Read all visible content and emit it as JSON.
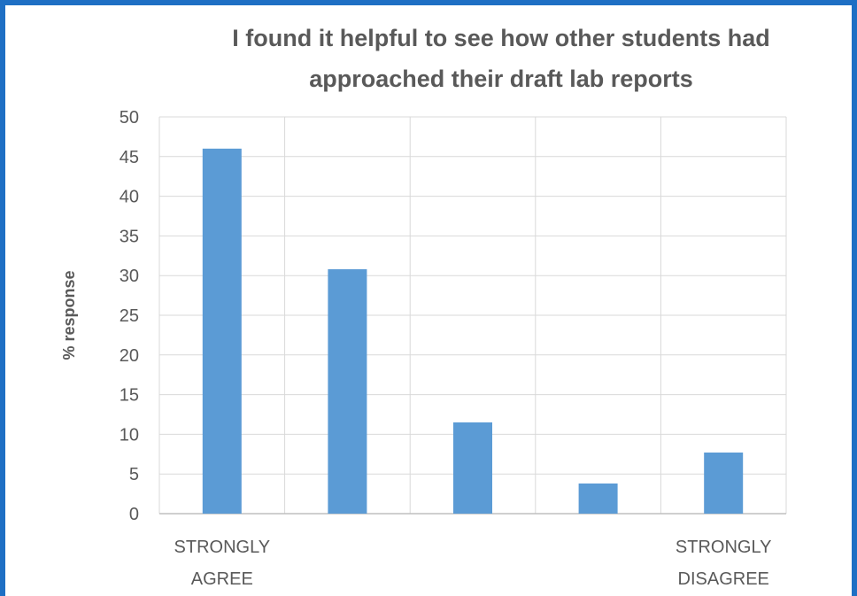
{
  "chart_data": {
    "type": "bar",
    "title": [
      "I found it helpful to see how other students had",
      "approached their draft lab reports"
    ],
    "ylabel": "% response",
    "xlabel": "",
    "ylim": [
      0,
      50
    ],
    "yticks": [
      0,
      5,
      10,
      15,
      20,
      25,
      30,
      35,
      40,
      45,
      50
    ],
    "grid": true,
    "categories": [
      [
        "STRONGLY",
        "AGREE"
      ],
      [],
      [],
      [],
      [
        "STRONGLY",
        "DISAGREE"
      ]
    ],
    "values": [
      46,
      30.8,
      11.5,
      3.8,
      7.7
    ],
    "bar_color": "#5b9bd5",
    "grid_color": "#d9d9d9",
    "text_color": "#595959"
  },
  "frame_color": "#1e6fc4"
}
